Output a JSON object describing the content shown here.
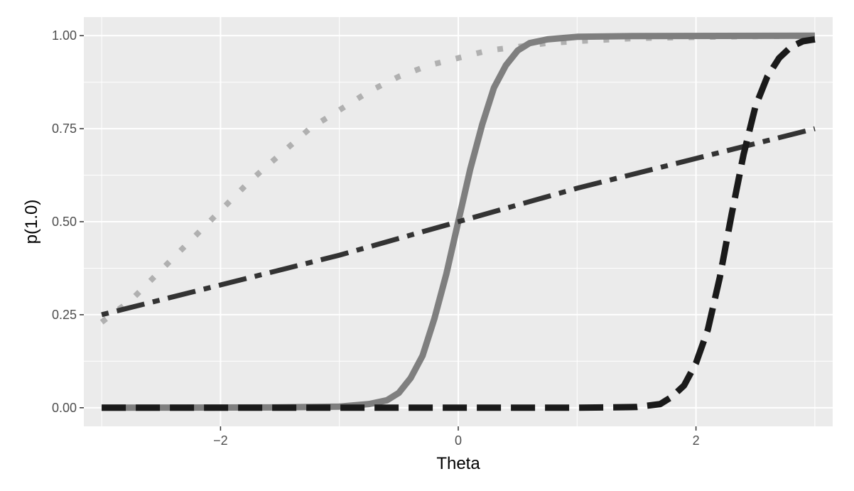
{
  "chart_data": {
    "type": "line",
    "title": "",
    "xlabel": "Theta",
    "ylabel": "p(1.0)",
    "xlim": [
      -3.15,
      3.15
    ],
    "ylim": [
      -0.05,
      1.05
    ],
    "x_ticks": [
      -2,
      0,
      2
    ],
    "x_tick_labels": [
      "−2",
      "0",
      "2"
    ],
    "y_ticks": [
      0,
      0.25,
      0.5,
      0.75,
      1.0
    ],
    "y_tick_labels": [
      "0.00",
      "0.25",
      "0.50",
      "0.75",
      "1.00"
    ],
    "grid": true,
    "legend": "none",
    "background": "#ebebeb",
    "series": [
      {
        "line_style": "dotted",
        "color": "#b0b0b0",
        "x": [
          -3,
          -2.75,
          -2.5,
          -2.25,
          -2,
          -1.75,
          -1.5,
          -1.25,
          -1,
          -0.75,
          -0.5,
          -0.25,
          0,
          0.25,
          0.5,
          0.75,
          1,
          1.5,
          2,
          2.5,
          3
        ],
        "y": [
          0.23,
          0.29,
          0.37,
          0.45,
          0.53,
          0.61,
          0.68,
          0.75,
          0.8,
          0.85,
          0.89,
          0.92,
          0.94,
          0.96,
          0.97,
          0.98,
          0.985,
          0.993,
          0.996,
          0.998,
          0.999
        ]
      },
      {
        "line_style": "solid",
        "color": "#7f7f7f",
        "x": [
          -3,
          -1.5,
          -1,
          -0.75,
          -0.6,
          -0.5,
          -0.4,
          -0.3,
          -0.2,
          -0.1,
          0,
          0.1,
          0.2,
          0.3,
          0.4,
          0.5,
          0.6,
          0.75,
          1,
          1.5,
          3
        ],
        "y": [
          0,
          0.001,
          0.003,
          0.01,
          0.02,
          0.04,
          0.08,
          0.14,
          0.24,
          0.36,
          0.5,
          0.64,
          0.76,
          0.86,
          0.92,
          0.96,
          0.98,
          0.99,
          0.997,
          0.999,
          1.0
        ]
      },
      {
        "line_style": "dotdash",
        "color": "#333333",
        "x": [
          -3,
          -2,
          -1,
          0,
          1,
          2,
          3
        ],
        "y": [
          0.25,
          0.33,
          0.41,
          0.5,
          0.59,
          0.67,
          0.75
        ]
      },
      {
        "line_style": "longdash",
        "color": "#1a1a1a",
        "x": [
          -3,
          1,
          1.5,
          1.7,
          1.8,
          1.9,
          2,
          2.1,
          2.2,
          2.3,
          2.4,
          2.5,
          2.6,
          2.7,
          2.8,
          2.9,
          3
        ],
        "y": [
          0,
          0.0,
          0.002,
          0.01,
          0.03,
          0.06,
          0.12,
          0.21,
          0.35,
          0.52,
          0.68,
          0.81,
          0.89,
          0.94,
          0.97,
          0.985,
          0.99
        ]
      }
    ]
  }
}
